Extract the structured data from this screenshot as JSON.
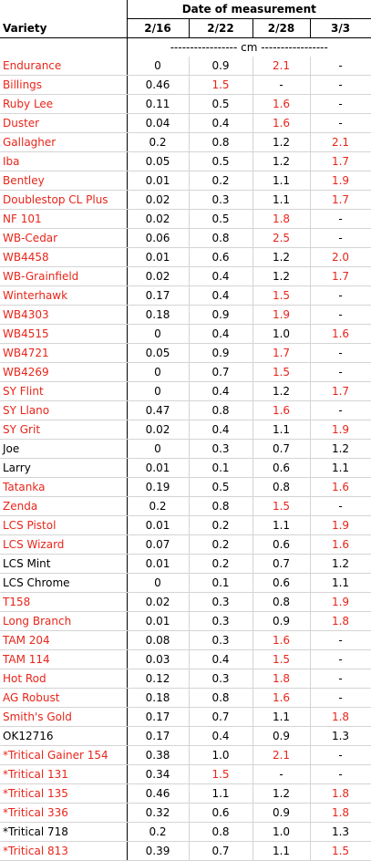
{
  "header": {
    "group_title": "Date of measurement",
    "variety_label": "Variety",
    "dates": [
      "2/16",
      "2/22",
      "2/28",
      "3/3"
    ],
    "units": "----------------- cm -----------------"
  },
  "colors": {
    "red": "#e8251a",
    "black": "#000000"
  },
  "rows": [
    {
      "variety": "Endurance",
      "variety_color": "red",
      "values": [
        "0",
        "0.9",
        "2.1",
        "-"
      ],
      "colors": [
        "black",
        "black",
        "red",
        "black"
      ]
    },
    {
      "variety": "Billings",
      "variety_color": "red",
      "values": [
        "0.46",
        "1.5",
        "-",
        "-"
      ],
      "colors": [
        "black",
        "red",
        "black",
        "black"
      ]
    },
    {
      "variety": "Ruby Lee",
      "variety_color": "red",
      "values": [
        "0.11",
        "0.5",
        "1.6",
        "-"
      ],
      "colors": [
        "black",
        "black",
        "red",
        "black"
      ]
    },
    {
      "variety": "Duster",
      "variety_color": "red",
      "values": [
        "0.04",
        "0.4",
        "1.6",
        "-"
      ],
      "colors": [
        "black",
        "black",
        "red",
        "black"
      ]
    },
    {
      "variety": "Gallagher",
      "variety_color": "red",
      "values": [
        "0.2",
        "0.8",
        "1.2",
        "2.1"
      ],
      "colors": [
        "black",
        "black",
        "black",
        "red"
      ]
    },
    {
      "variety": "Iba",
      "variety_color": "red",
      "values": [
        "0.05",
        "0.5",
        "1.2",
        "1.7"
      ],
      "colors": [
        "black",
        "black",
        "black",
        "red"
      ]
    },
    {
      "variety": "Bentley",
      "variety_color": "red",
      "values": [
        "0.01",
        "0.2",
        "1.1",
        "1.9"
      ],
      "colors": [
        "black",
        "black",
        "black",
        "red"
      ]
    },
    {
      "variety": "Doublestop CL Plus",
      "variety_color": "red",
      "values": [
        "0.02",
        "0.3",
        "1.1",
        "1.7"
      ],
      "colors": [
        "black",
        "black",
        "black",
        "red"
      ]
    },
    {
      "variety": "NF 101",
      "variety_color": "red",
      "values": [
        "0.02",
        "0.5",
        "1.8",
        "-"
      ],
      "colors": [
        "black",
        "black",
        "red",
        "black"
      ]
    },
    {
      "variety": "WB-Cedar",
      "variety_color": "red",
      "values": [
        "0.06",
        "0.8",
        "2.5",
        "-"
      ],
      "colors": [
        "black",
        "black",
        "red",
        "black"
      ]
    },
    {
      "variety": "WB4458",
      "variety_color": "red",
      "values": [
        "0.01",
        "0.6",
        "1.2",
        "2.0"
      ],
      "colors": [
        "black",
        "black",
        "black",
        "red"
      ]
    },
    {
      "variety": "WB-Grainfield",
      "variety_color": "red",
      "values": [
        "0.02",
        "0.4",
        "1.2",
        "1.7"
      ],
      "colors": [
        "black",
        "black",
        "black",
        "red"
      ]
    },
    {
      "variety": "Winterhawk",
      "variety_color": "red",
      "values": [
        "0.17",
        "0.4",
        "1.5",
        "-"
      ],
      "colors": [
        "black",
        "black",
        "red",
        "black"
      ]
    },
    {
      "variety": "WB4303",
      "variety_color": "red",
      "values": [
        "0.18",
        "0.9",
        "1.9",
        "-"
      ],
      "colors": [
        "black",
        "black",
        "red",
        "black"
      ]
    },
    {
      "variety": "WB4515",
      "variety_color": "red",
      "values": [
        "0",
        "0.4",
        "1.0",
        "1.6"
      ],
      "colors": [
        "black",
        "black",
        "black",
        "red"
      ]
    },
    {
      "variety": "WB4721",
      "variety_color": "red",
      "values": [
        "0.05",
        "0.9",
        "1.7",
        "-"
      ],
      "colors": [
        "black",
        "black",
        "red",
        "black"
      ]
    },
    {
      "variety": "WB4269",
      "variety_color": "red",
      "values": [
        "0",
        "0.7",
        "1.5",
        "-"
      ],
      "colors": [
        "black",
        "black",
        "red",
        "black"
      ]
    },
    {
      "variety": "SY Flint",
      "variety_color": "red",
      "values": [
        "0",
        "0.4",
        "1.2",
        "1.7"
      ],
      "colors": [
        "black",
        "black",
        "black",
        "red"
      ]
    },
    {
      "variety": "SY Llano",
      "variety_color": "red",
      "values": [
        "0.47",
        "0.8",
        "1.6",
        "-"
      ],
      "colors": [
        "black",
        "black",
        "red",
        "black"
      ]
    },
    {
      "variety": "SY Grit",
      "variety_color": "red",
      "values": [
        "0.02",
        "0.4",
        "1.1",
        "1.9"
      ],
      "colors": [
        "black",
        "black",
        "black",
        "red"
      ]
    },
    {
      "variety": "Joe",
      "variety_color": "black",
      "values": [
        "0",
        "0.3",
        "0.7",
        "1.2"
      ],
      "colors": [
        "black",
        "black",
        "black",
        "black"
      ]
    },
    {
      "variety": "Larry",
      "variety_color": "black",
      "values": [
        "0.01",
        "0.1",
        "0.6",
        "1.1"
      ],
      "colors": [
        "black",
        "black",
        "black",
        "black"
      ]
    },
    {
      "variety": "Tatanka",
      "variety_color": "red",
      "values": [
        "0.19",
        "0.5",
        "0.8",
        "1.6"
      ],
      "colors": [
        "black",
        "black",
        "black",
        "red"
      ]
    },
    {
      "variety": "Zenda",
      "variety_color": "red",
      "values": [
        "0.2",
        "0.8",
        "1.5",
        "-"
      ],
      "colors": [
        "black",
        "black",
        "red",
        "black"
      ]
    },
    {
      "variety": "LCS Pistol",
      "variety_color": "red",
      "values": [
        "0.01",
        "0.2",
        "1.1",
        "1.9"
      ],
      "colors": [
        "black",
        "black",
        "black",
        "red"
      ]
    },
    {
      "variety": "LCS Wizard",
      "variety_color": "red",
      "values": [
        "0.07",
        "0.2",
        "0.6",
        "1.6"
      ],
      "colors": [
        "black",
        "black",
        "black",
        "red"
      ]
    },
    {
      "variety": "LCS Mint",
      "variety_color": "black",
      "values": [
        "0.01",
        "0.2",
        "0.7",
        "1.2"
      ],
      "colors": [
        "black",
        "black",
        "black",
        "black"
      ]
    },
    {
      "variety": "LCS Chrome",
      "variety_color": "black",
      "values": [
        "0",
        "0.1",
        "0.6",
        "1.1"
      ],
      "colors": [
        "black",
        "black",
        "black",
        "black"
      ]
    },
    {
      "variety": "T158",
      "variety_color": "red",
      "values": [
        "0.02",
        "0.3",
        "0.8",
        "1.9"
      ],
      "colors": [
        "black",
        "black",
        "black",
        "red"
      ]
    },
    {
      "variety": "Long Branch",
      "variety_color": "red",
      "values": [
        "0.01",
        "0.3",
        "0.9",
        "1.8"
      ],
      "colors": [
        "black",
        "black",
        "black",
        "red"
      ]
    },
    {
      "variety": "TAM 204",
      "variety_color": "red",
      "values": [
        "0.08",
        "0.3",
        "1.6",
        "-"
      ],
      "colors": [
        "black",
        "black",
        "red",
        "black"
      ]
    },
    {
      "variety": "TAM 114",
      "variety_color": "red",
      "values": [
        "0.03",
        "0.4",
        "1.5",
        "-"
      ],
      "colors": [
        "black",
        "black",
        "red",
        "black"
      ]
    },
    {
      "variety": "Hot Rod",
      "variety_color": "red",
      "values": [
        "0.12",
        "0.3",
        "1.8",
        "-"
      ],
      "colors": [
        "black",
        "black",
        "red",
        "black"
      ]
    },
    {
      "variety": "AG Robust",
      "variety_color": "red",
      "values": [
        "0.18",
        "0.8",
        "1.6",
        "-"
      ],
      "colors": [
        "black",
        "black",
        "red",
        "black"
      ]
    },
    {
      "variety": "Smith's Gold",
      "variety_color": "red",
      "values": [
        "0.17",
        "0.7",
        "1.1",
        "1.8"
      ],
      "colors": [
        "black",
        "black",
        "black",
        "red"
      ]
    },
    {
      "variety": "OK12716",
      "variety_color": "black",
      "values": [
        "0.17",
        "0.4",
        "0.9",
        "1.3"
      ],
      "colors": [
        "black",
        "black",
        "black",
        "black"
      ]
    },
    {
      "variety": "*Tritical Gainer 154",
      "variety_color": "red",
      "values": [
        "0.38",
        "1.0",
        "2.1",
        "-"
      ],
      "colors": [
        "black",
        "black",
        "red",
        "black"
      ]
    },
    {
      "variety": "*Tritical 131",
      "variety_color": "red",
      "values": [
        "0.34",
        "1.5",
        "-",
        "-"
      ],
      "colors": [
        "black",
        "red",
        "black",
        "black"
      ]
    },
    {
      "variety": "*Tritical 135",
      "variety_color": "red",
      "values": [
        "0.46",
        "1.1",
        "1.2",
        "1.8"
      ],
      "colors": [
        "black",
        "black",
        "black",
        "red"
      ]
    },
    {
      "variety": "*Tritical 336",
      "variety_color": "red",
      "values": [
        "0.32",
        "0.6",
        "0.9",
        "1.8"
      ],
      "colors": [
        "black",
        "black",
        "black",
        "red"
      ]
    },
    {
      "variety": "*Tritical 718",
      "variety_color": "black",
      "values": [
        "0.2",
        "0.8",
        "1.0",
        "1.3"
      ],
      "colors": [
        "black",
        "black",
        "black",
        "black"
      ]
    },
    {
      "variety": "*Tritical 813",
      "variety_color": "red",
      "values": [
        "0.39",
        "0.7",
        "1.1",
        "1.5"
      ],
      "colors": [
        "black",
        "black",
        "black",
        "red"
      ]
    }
  ]
}
